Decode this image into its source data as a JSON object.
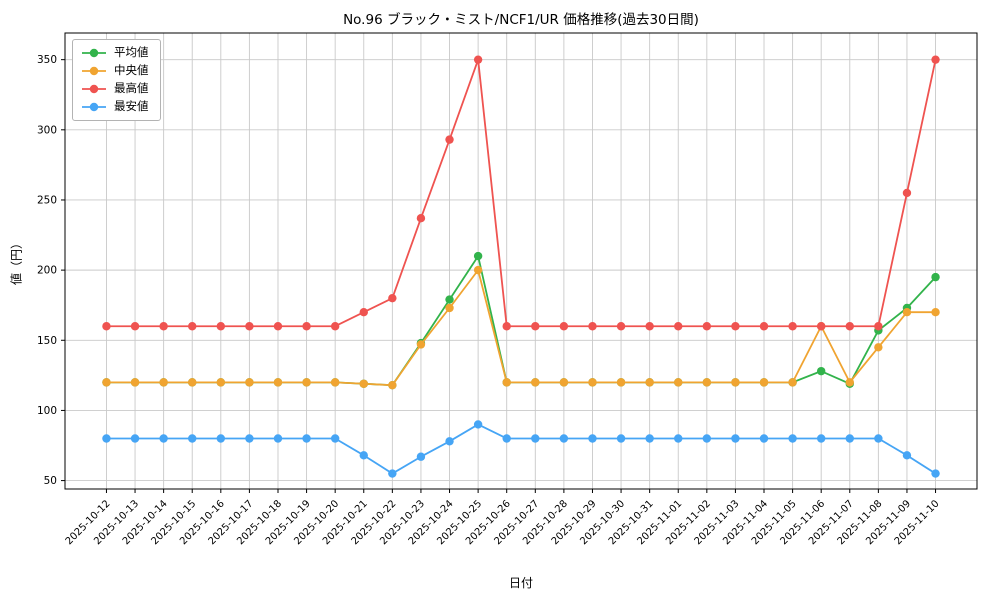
{
  "chart_data": {
    "type": "line",
    "title": "No.96 ブラック・ミスト/NCF1/UR 価格推移(過去30日間)",
    "xlabel": "日付",
    "ylabel": "値（円）",
    "x": [
      "2025-10-12",
      "2025-10-13",
      "2025-10-14",
      "2025-10-15",
      "2025-10-16",
      "2025-10-17",
      "2025-10-18",
      "2025-10-19",
      "2025-10-20",
      "2025-10-21",
      "2025-10-22",
      "2025-10-23",
      "2025-10-24",
      "2025-10-25",
      "2025-10-26",
      "2025-10-27",
      "2025-10-28",
      "2025-10-29",
      "2025-10-30",
      "2025-10-31",
      "2025-11-01",
      "2025-11-02",
      "2025-11-03",
      "2025-11-04",
      "2025-11-05",
      "2025-11-06",
      "2025-11-07",
      "2025-11-08",
      "2025-11-09",
      "2025-11-10"
    ],
    "series": [
      {
        "name": "平均値",
        "color": "#32b34b",
        "values": [
          120,
          120,
          120,
          120,
          120,
          120,
          120,
          120,
          120,
          119,
          118,
          148,
          179,
          210,
          120,
          120,
          120,
          120,
          120,
          120,
          120,
          120,
          120,
          120,
          120,
          128,
          119,
          157,
          173,
          195
        ]
      },
      {
        "name": "中央値",
        "color": "#f0a431",
        "values": [
          120,
          120,
          120,
          120,
          120,
          120,
          120,
          120,
          120,
          119,
          118,
          147,
          173,
          200,
          120,
          120,
          120,
          120,
          120,
          120,
          120,
          120,
          120,
          120,
          120,
          160,
          120,
          145,
          170,
          170
        ]
      },
      {
        "name": "最高値",
        "color": "#ef5350",
        "values": [
          160,
          160,
          160,
          160,
          160,
          160,
          160,
          160,
          160,
          170,
          180,
          237,
          293,
          350,
          160,
          160,
          160,
          160,
          160,
          160,
          160,
          160,
          160,
          160,
          160,
          160,
          160,
          160,
          255,
          350
        ]
      },
      {
        "name": "最安値",
        "color": "#46a5f5",
        "values": [
          80,
          80,
          80,
          80,
          80,
          80,
          80,
          80,
          80,
          68,
          55,
          67,
          78,
          90,
          80,
          80,
          80,
          80,
          80,
          80,
          80,
          80,
          80,
          80,
          80,
          80,
          80,
          80,
          68,
          55
        ]
      }
    ],
    "yticks": [
      50,
      100,
      150,
      200,
      250,
      300,
      350
    ],
    "ylim": [
      44,
      369
    ],
    "grid": true,
    "legend_position": "upper left",
    "grid_color": "#c9c9c9",
    "spine_color": "#000000"
  }
}
